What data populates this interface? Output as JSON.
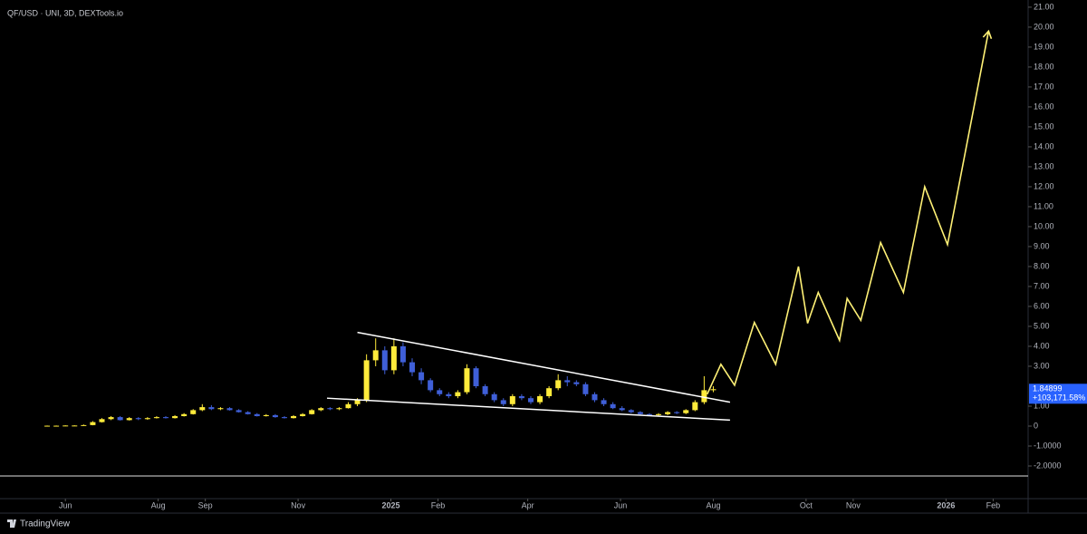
{
  "chart_data": {
    "type": "candlestick",
    "title": "QF/USD · UNI, 3D, DEXTools.io",
    "up_color": "#ffeb3b",
    "down_color": "#3f5fd8",
    "x": [
      -12,
      -6,
      0,
      6,
      12,
      18,
      24,
      30,
      36,
      42,
      48,
      54,
      60,
      66,
      72,
      78,
      84,
      90,
      96,
      102,
      108,
      114,
      120,
      126,
      132,
      138,
      144,
      150,
      156,
      162,
      168,
      174,
      180,
      186,
      192,
      198,
      204,
      210,
      216,
      222,
      228,
      234,
      240,
      246,
      252,
      258,
      264,
      270,
      276,
      282,
      288,
      294,
      300,
      306,
      312,
      318,
      324,
      330,
      336,
      342,
      348,
      354,
      360,
      366,
      372,
      378,
      384,
      390,
      396,
      402,
      408,
      414,
      420,
      426
    ],
    "open": [
      0.02,
      0.02,
      0.02,
      0.03,
      0.03,
      0.05,
      0.2,
      0.35,
      0.45,
      0.3,
      0.4,
      0.35,
      0.4,
      0.45,
      0.4,
      0.5,
      0.6,
      0.8,
      0.95,
      0.85,
      0.9,
      0.8,
      0.7,
      0.6,
      0.5,
      0.55,
      0.45,
      0.4,
      0.5,
      0.6,
      0.8,
      0.9,
      0.85,
      0.9,
      1.1,
      1.3,
      3.3,
      3.8,
      2.8,
      4.0,
      3.2,
      2.7,
      2.3,
      1.8,
      1.6,
      1.5,
      1.7,
      2.9,
      2.0,
      1.6,
      1.3,
      1.1,
      1.5,
      1.4,
      1.2,
      1.5,
      1.9,
      2.3,
      2.2,
      2.1,
      1.6,
      1.3,
      1.1,
      0.9,
      0.8,
      0.7,
      0.6,
      0.55,
      0.6,
      0.7,
      0.65,
      0.8,
      1.2,
      1.8
    ],
    "high": [
      0.03,
      0.03,
      0.04,
      0.04,
      0.08,
      0.25,
      0.4,
      0.5,
      0.5,
      0.45,
      0.45,
      0.45,
      0.5,
      0.5,
      0.55,
      0.65,
      0.85,
      1.1,
      1.05,
      0.95,
      0.95,
      0.85,
      0.75,
      0.65,
      0.6,
      0.6,
      0.5,
      0.55,
      0.65,
      0.85,
      0.95,
      0.95,
      0.95,
      1.2,
      1.4,
      3.6,
      4.4,
      4.0,
      4.4,
      4.2,
      3.4,
      2.9,
      2.4,
      1.9,
      1.7,
      1.8,
      3.1,
      3.0,
      2.1,
      1.7,
      1.4,
      1.6,
      1.6,
      1.5,
      1.6,
      2.0,
      2.6,
      2.5,
      2.3,
      2.2,
      1.7,
      1.4,
      1.2,
      1.0,
      0.85,
      0.75,
      0.65,
      0.65,
      0.75,
      0.75,
      0.85,
      1.3,
      2.5,
      2.0
    ],
    "low": [
      0.01,
      0.01,
      0.01,
      0.02,
      0.02,
      0.04,
      0.18,
      0.3,
      0.28,
      0.28,
      0.3,
      0.32,
      0.38,
      0.38,
      0.38,
      0.48,
      0.58,
      0.75,
      0.8,
      0.8,
      0.78,
      0.68,
      0.58,
      0.48,
      0.48,
      0.42,
      0.38,
      0.38,
      0.48,
      0.58,
      0.75,
      0.8,
      0.8,
      0.88,
      1.0,
      1.2,
      3.0,
      2.6,
      2.6,
      3.0,
      2.5,
      2.1,
      1.7,
      1.5,
      1.4,
      1.4,
      1.6,
      1.9,
      1.5,
      1.2,
      1.0,
      1.0,
      1.3,
      1.1,
      1.1,
      1.4,
      1.8,
      2.0,
      2.0,
      1.5,
      1.2,
      1.0,
      0.85,
      0.75,
      0.65,
      0.55,
      0.5,
      0.5,
      0.55,
      0.6,
      0.6,
      0.75,
      1.1,
      1.7
    ],
    "close": [
      0.02,
      0.02,
      0.03,
      0.03,
      0.05,
      0.2,
      0.35,
      0.45,
      0.3,
      0.4,
      0.35,
      0.4,
      0.45,
      0.4,
      0.5,
      0.6,
      0.8,
      0.95,
      0.85,
      0.9,
      0.8,
      0.7,
      0.6,
      0.5,
      0.55,
      0.45,
      0.4,
      0.5,
      0.6,
      0.8,
      0.9,
      0.85,
      0.9,
      1.1,
      1.3,
      3.3,
      3.8,
      2.8,
      4.0,
      3.2,
      2.7,
      2.3,
      1.8,
      1.6,
      1.5,
      1.7,
      2.9,
      2.0,
      1.6,
      1.3,
      1.1,
      1.5,
      1.4,
      1.2,
      1.5,
      1.9,
      2.3,
      2.2,
      2.1,
      1.6,
      1.3,
      1.1,
      0.9,
      0.8,
      0.7,
      0.6,
      0.55,
      0.6,
      0.7,
      0.65,
      0.8,
      1.2,
      1.8,
      1.85
    ],
    "xlim": [
      -43,
      633
    ],
    "xticks": [
      {
        "value": 0,
        "label": "Jun"
      },
      {
        "value": 61,
        "label": "Aug"
      },
      {
        "value": 92,
        "label": "Sep"
      },
      {
        "value": 153,
        "label": "Nov"
      },
      {
        "value": 214,
        "label": "2025"
      },
      {
        "value": 245,
        "label": "Feb"
      },
      {
        "value": 304,
        "label": "Apr"
      },
      {
        "value": 365,
        "label": "Jun"
      },
      {
        "value": 426,
        "label": "Aug"
      },
      {
        "value": 487,
        "label": "Oct"
      },
      {
        "value": 518,
        "label": "Nov"
      },
      {
        "value": 579,
        "label": "2026"
      },
      {
        "value": 610,
        "label": "Feb"
      }
    ],
    "ylim": [
      -2.5,
      21.36
    ],
    "yticks": [
      {
        "value": 21,
        "label": "21.00"
      },
      {
        "value": 20,
        "label": "20.00"
      },
      {
        "value": 19,
        "label": "19.00"
      },
      {
        "value": 18,
        "label": "18.00"
      },
      {
        "value": 17,
        "label": "17.00"
      },
      {
        "value": 16,
        "label": "16.00"
      },
      {
        "value": 15,
        "label": "15.00"
      },
      {
        "value": 14,
        "label": "14.00"
      },
      {
        "value": 13,
        "label": "13.00"
      },
      {
        "value": 12,
        "label": "12.00"
      },
      {
        "value": 11,
        "label": "11.00"
      },
      {
        "value": 10,
        "label": "10.00"
      },
      {
        "value": 9,
        "label": "9.00"
      },
      {
        "value": 8,
        "label": "8.00"
      },
      {
        "value": 7,
        "label": "7.00"
      },
      {
        "value": 6,
        "label": "6.00"
      },
      {
        "value": 5,
        "label": "5.00"
      },
      {
        "value": 4,
        "label": "4.00"
      },
      {
        "value": 3,
        "label": "3.00"
      },
      {
        "value": 1,
        "label": "1.00"
      },
      0,
      {
        "value": -1,
        "label": "-1.0000"
      },
      {
        "value": -2,
        "label": "-2.0000"
      }
    ],
    "last_price": 1.84899,
    "last_change": "+103,171.58%",
    "projection": {
      "color": "#fff176",
      "x": [
        422,
        431,
        440,
        453,
        467,
        482,
        488,
        495,
        509,
        514,
        523,
        536,
        551,
        565,
        580,
        607
      ],
      "values": [
        1.6,
        3.1,
        2.05,
        5.2,
        3.1,
        8.0,
        5.15,
        6.7,
        4.3,
        6.4,
        5.3,
        9.2,
        6.7,
        12.0,
        9.1,
        19.8
      ]
    },
    "trendlines": [
      {
        "color": "#ffffff",
        "x": [
          192,
          437
        ],
        "values": [
          4.7,
          1.2
        ]
      },
      {
        "color": "#ffffff",
        "x": [
          172,
          437
        ],
        "values": [
          1.4,
          0.3
        ]
      }
    ],
    "branding": "TradingView"
  }
}
